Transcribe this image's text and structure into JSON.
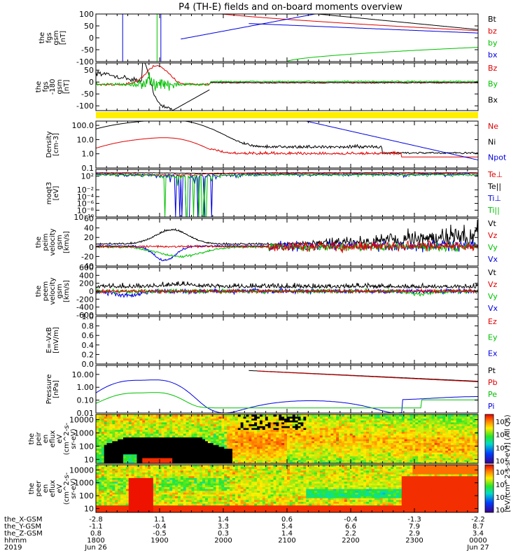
{
  "chart_data": {
    "type": "line",
    "title": "P4 (TH-E) fields and on-board moments overview",
    "panels": [
      {
        "id": "fgs-gsm",
        "ylabel": [
          "the",
          "fgs",
          "gsm",
          "[nT]"
        ],
        "yscale": "linear",
        "ylim": [
          -100,
          100
        ],
        "yticks": [
          "100",
          "50",
          "0",
          "-50",
          "-100"
        ],
        "legend": [
          {
            "name": "Bt",
            "color": "#000000"
          },
          {
            "name": "bz",
            "color": "#e00000"
          },
          {
            "name": "by",
            "color": "#00c000"
          },
          {
            "name": "bx",
            "color": "#0000e0"
          }
        ]
      },
      {
        "id": "fgs-gsm-180",
        "ylabel": [
          "the",
          "fgs",
          "-180",
          "gsm",
          "[nT]"
        ],
        "yscale": "linear",
        "ylim": [
          -120,
          80
        ],
        "yticks": [
          "50",
          "0",
          "-50",
          "-100"
        ],
        "legend": [
          {
            "name": "Bz",
            "color": "#e00000"
          },
          {
            "name": "By",
            "color": "#00c000"
          },
          {
            "name": "Bx",
            "color": "#000000"
          }
        ]
      },
      {
        "id": "density",
        "ylabel": [
          "Density",
          "[cm-3]"
        ],
        "yscale": "log",
        "ylim": [
          0.1,
          200
        ],
        "yticks": [
          "100.0",
          "10.0",
          "1.0",
          "0.1"
        ],
        "legend": [
          {
            "name": "Ne",
            "color": "#e00000"
          },
          {
            "name": "Ni",
            "color": "#000000"
          },
          {
            "name": "Npot",
            "color": "#0000e0"
          }
        ]
      },
      {
        "id": "moqt3",
        "ylabel": [
          "moqt3",
          "[eV]"
        ],
        "yscale": "log",
        "ylim": [
          1e-10,
          10000.0
        ],
        "yticks": [
          "10²",
          "10⁻²",
          "10⁻⁴",
          "10⁻⁶",
          "10⁻⁸",
          "10⁻¹⁰"
        ],
        "legend": [
          {
            "name": "Te⊥",
            "color": "#e00000"
          },
          {
            "name": "Te||",
            "color": "#000000"
          },
          {
            "name": "Ti⊥",
            "color": "#0000e0"
          },
          {
            "name": "Ti||",
            "color": "#00c000"
          }
        ]
      },
      {
        "id": "peim-velocity",
        "ylabel": [
          "the",
          "peim",
          "velocity",
          "gsm",
          "[km/s]"
        ],
        "yscale": "linear",
        "ylim": [
          -40,
          60
        ],
        "yticks": [
          "60",
          "40",
          "20",
          "0",
          "-20",
          "-40"
        ],
        "legend": [
          {
            "name": "Vt",
            "color": "#000000"
          },
          {
            "name": "Vz",
            "color": "#e00000"
          },
          {
            "name": "Vy",
            "color": "#00c000"
          },
          {
            "name": "Vx",
            "color": "#0000e0"
          }
        ]
      },
      {
        "id": "peem-velocity",
        "ylabel": [
          "the",
          "peem",
          "velocity",
          "gsm",
          "[km/s]"
        ],
        "yscale": "linear",
        "ylim": [
          -600,
          600
        ],
        "yticks": [
          "600",
          "400",
          "200",
          "0",
          "-200",
          "-400",
          "-600"
        ],
        "legend": [
          {
            "name": "Vt",
            "color": "#000000"
          },
          {
            "name": "Vz",
            "color": "#e00000"
          },
          {
            "name": "Vy",
            "color": "#00c000"
          },
          {
            "name": "Vx",
            "color": "#0000e0"
          }
        ]
      },
      {
        "id": "efield",
        "ylabel": [
          "E=-VxB",
          "[mV/m]"
        ],
        "yscale": "linear",
        "ylim": [
          0,
          1
        ],
        "yticks": [
          "1.0",
          "0.8",
          "0.6",
          "0.4",
          "0.2",
          "0.0"
        ],
        "legend": [
          {
            "name": "Ez",
            "color": "#e00000"
          },
          {
            "name": "Ey",
            "color": "#00c000"
          },
          {
            "name": "Ex",
            "color": "#0000e0"
          }
        ]
      },
      {
        "id": "pressure",
        "ylabel": [
          "Pressure",
          "[nPa]"
        ],
        "yscale": "log",
        "ylim": [
          0.01,
          50
        ],
        "yticks": [
          "10.00",
          "1.00",
          "0.10",
          "0.01"
        ],
        "legend": [
          {
            "name": "Pt",
            "color": "#000000"
          },
          {
            "name": "Pb",
            "color": "#e00000"
          },
          {
            "name": "Pe",
            "color": "#00c000"
          },
          {
            "name": "Pi",
            "color": "#0000e0"
          }
        ]
      },
      {
        "id": "peir-spectrogram",
        "type": "heatmap",
        "ylabel": [
          "the",
          "peir",
          "en",
          "eflux",
          "eV",
          "(cm^2-s-",
          "sr-eV)"
        ],
        "yscale": "log",
        "ylim": [
          5,
          25000
        ],
        "yticks": [
          "10000",
          "1000",
          "100",
          "10"
        ]
      },
      {
        "id": "peer-spectrogram",
        "type": "heatmap",
        "ylabel": [
          "the",
          "peer",
          "en",
          "eflux",
          "eV",
          "(cm^2-s-",
          "sr-eV)"
        ],
        "yscale": "log",
        "ylim": [
          5,
          25000
        ],
        "yticks": [
          "10000",
          "1000",
          "100",
          "10"
        ]
      }
    ],
    "colorbar": {
      "label": "[eV/(cm^2-s-sr-eV)] (All Qs)",
      "ticks": [
        "10⁸",
        "10⁶",
        "10⁴",
        "10²"
      ]
    },
    "x_axis": {
      "row_labels": [
        "the_X-GSM",
        "the_Y-GSM",
        "the_Z-GSM",
        "hhmm",
        "2019"
      ],
      "columns": [
        {
          "x": -2.8,
          "y": -1.1,
          "z": 0.8,
          "hhmm": "1800",
          "date": "Jun 26"
        },
        {
          "x": 1.1,
          "y": -0.4,
          "z": -0.5,
          "hhmm": "1900",
          "date": ""
        },
        {
          "x": 1.4,
          "y": 3.3,
          "z": 0.3,
          "hhmm": "2000",
          "date": ""
        },
        {
          "x": 0.6,
          "y": 5.4,
          "z": 1.4,
          "hhmm": "2100",
          "date": ""
        },
        {
          "x": -0.4,
          "y": 6.6,
          "z": 2.2,
          "hhmm": "2200",
          "date": ""
        },
        {
          "x": -1.3,
          "y": 7.9,
          "z": 2.9,
          "hhmm": "2300",
          "date": ""
        },
        {
          "x": -2.2,
          "y": 8.7,
          "z": 3.4,
          "hhmm": "0000",
          "date": "Jun 27"
        }
      ]
    }
  }
}
